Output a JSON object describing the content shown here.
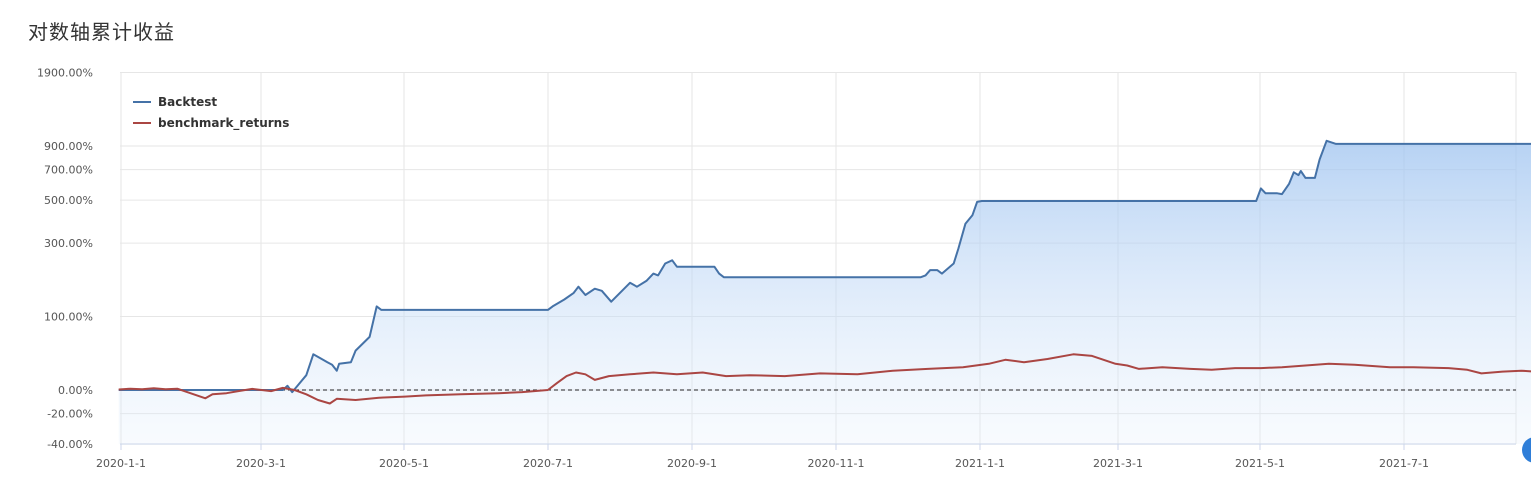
{
  "title": "对数轴累计收益",
  "chart_data": {
    "type": "area",
    "title": "对数轴累计收益",
    "y_scale": "log (1 + return)",
    "legend_position": "top-left",
    "grid": true,
    "x_tick_labels": [
      "2020-1-1",
      "2020-3-1",
      "2020-5-1",
      "2020-7-1",
      "2020-9-1",
      "2020-11-1",
      "2021-1-1",
      "2021-3-1",
      "2021-5-1",
      "2021-7-1"
    ],
    "y_tick_labels": [
      "1900.00%",
      "900.00%",
      "700.00%",
      "500.00%",
      "300.00%",
      "100.00%",
      "0.00%",
      "-20.00%",
      "-40.00%"
    ],
    "y_tick_values": [
      1900,
      900,
      700,
      500,
      300,
      100,
      0,
      -20,
      -40
    ],
    "ylim": [
      -40,
      1900
    ],
    "xlim": [
      "2019-12-31",
      "2021-08-26"
    ],
    "series": [
      {
        "name": "Backtest",
        "color": "#4572a7",
        "area": true,
        "points": [
          [
            "2019-12-31",
            0
          ],
          [
            "2020-03-10",
            0
          ],
          [
            "2020-03-12",
            4
          ],
          [
            "2020-03-14",
            -2
          ],
          [
            "2020-03-20",
            15
          ],
          [
            "2020-03-23",
            40
          ],
          [
            "2020-03-26",
            35
          ],
          [
            "2020-03-29",
            30
          ],
          [
            "2020-03-31",
            27
          ],
          [
            "2020-04-02",
            20
          ],
          [
            "2020-04-03",
            28
          ],
          [
            "2020-04-08",
            30
          ],
          [
            "2020-04-10",
            45
          ],
          [
            "2020-04-16",
            65
          ],
          [
            "2020-04-19",
            120
          ],
          [
            "2020-04-21",
            113
          ],
          [
            "2020-07-01",
            113
          ],
          [
            "2020-07-03",
            120
          ],
          [
            "2020-07-08",
            135
          ],
          [
            "2020-07-12",
            150
          ],
          [
            "2020-07-14",
            165
          ],
          [
            "2020-07-17",
            145
          ],
          [
            "2020-07-21",
            160
          ],
          [
            "2020-07-24",
            155
          ],
          [
            "2020-07-28",
            130
          ],
          [
            "2020-08-05",
            175
          ],
          [
            "2020-08-08",
            165
          ],
          [
            "2020-08-12",
            180
          ],
          [
            "2020-08-15",
            200
          ],
          [
            "2020-08-17",
            195
          ],
          [
            "2020-08-20",
            230
          ],
          [
            "2020-08-23",
            240
          ],
          [
            "2020-08-25",
            220
          ],
          [
            "2020-09-10",
            220
          ],
          [
            "2020-09-12",
            200
          ],
          [
            "2020-09-14",
            190
          ],
          [
            "2020-12-07",
            190
          ],
          [
            "2020-12-09",
            195
          ],
          [
            "2020-12-11",
            210
          ],
          [
            "2020-12-14",
            210
          ],
          [
            "2020-12-16",
            200
          ],
          [
            "2020-12-21",
            230
          ],
          [
            "2020-12-23",
            280
          ],
          [
            "2020-12-26",
            380
          ],
          [
            "2020-12-29",
            420
          ],
          [
            "2020-12-31",
            490
          ],
          [
            "2021-01-02",
            495
          ],
          [
            "2021-04-29",
            495
          ],
          [
            "2021-05-01",
            570
          ],
          [
            "2021-05-03",
            540
          ],
          [
            "2021-05-08",
            540
          ],
          [
            "2021-05-10",
            535
          ],
          [
            "2021-05-13",
            600
          ],
          [
            "2021-05-15",
            680
          ],
          [
            "2021-05-17",
            660
          ],
          [
            "2021-05-18",
            690
          ],
          [
            "2021-05-20",
            640
          ],
          [
            "2021-05-24",
            640
          ],
          [
            "2021-05-26",
            780
          ],
          [
            "2021-05-29",
            950
          ],
          [
            "2021-06-02",
            920
          ],
          [
            "2021-08-26",
            920
          ]
        ]
      },
      {
        "name": "benchmark_returns",
        "color": "#aa4643",
        "area": false,
        "points": [
          [
            "2019-12-31",
            0.5
          ],
          [
            "2020-01-05",
            1.2
          ],
          [
            "2020-01-10",
            0.8
          ],
          [
            "2020-01-15",
            1.6
          ],
          [
            "2020-01-20",
            0.7
          ],
          [
            "2020-01-25",
            1.2
          ],
          [
            "2020-02-01",
            -4
          ],
          [
            "2020-02-06",
            -7.5
          ],
          [
            "2020-02-09",
            -4
          ],
          [
            "2020-02-15",
            -3
          ],
          [
            "2020-02-20",
            -1
          ],
          [
            "2020-02-26",
            1.0
          ],
          [
            "2020-03-05",
            -1
          ],
          [
            "2020-03-10",
            2.0
          ],
          [
            "2020-03-15",
            0
          ],
          [
            "2020-03-20",
            -4
          ],
          [
            "2020-03-25",
            -9
          ],
          [
            "2020-03-30",
            -12
          ],
          [
            "2020-04-02",
            -8
          ],
          [
            "2020-04-10",
            -9
          ],
          [
            "2020-04-20",
            -7
          ],
          [
            "2020-05-01",
            -6
          ],
          [
            "2020-05-10",
            -5
          ],
          [
            "2020-05-25",
            -4
          ],
          [
            "2020-06-10",
            -3
          ],
          [
            "2020-06-20",
            -2
          ],
          [
            "2020-07-01",
            0
          ],
          [
            "2020-07-05",
            7
          ],
          [
            "2020-07-09",
            14
          ],
          [
            "2020-07-13",
            18
          ],
          [
            "2020-07-17",
            16
          ],
          [
            "2020-07-21",
            10
          ],
          [
            "2020-07-27",
            14
          ],
          [
            "2020-08-05",
            16
          ],
          [
            "2020-08-15",
            18
          ],
          [
            "2020-08-25",
            16
          ],
          [
            "2020-09-05",
            18
          ],
          [
            "2020-09-15",
            14
          ],
          [
            "2020-09-25",
            15
          ],
          [
            "2020-10-10",
            14
          ],
          [
            "2020-10-25",
            17
          ],
          [
            "2020-11-10",
            16
          ],
          [
            "2020-11-25",
            20
          ],
          [
            "2020-12-10",
            22
          ],
          [
            "2020-12-25",
            24
          ],
          [
            "2021-01-05",
            28
          ],
          [
            "2021-01-12",
            33
          ],
          [
            "2021-01-20",
            30
          ],
          [
            "2021-01-30",
            34
          ],
          [
            "2021-02-10",
            40
          ],
          [
            "2021-02-18",
            38
          ],
          [
            "2021-02-28",
            28
          ],
          [
            "2021-03-05",
            26
          ],
          [
            "2021-03-10",
            22
          ],
          [
            "2021-03-20",
            24
          ],
          [
            "2021-04-01",
            22
          ],
          [
            "2021-04-10",
            21
          ],
          [
            "2021-04-20",
            23
          ],
          [
            "2021-05-01",
            23
          ],
          [
            "2021-05-10",
            24
          ],
          [
            "2021-05-20",
            26
          ],
          [
            "2021-05-30",
            28
          ],
          [
            "2021-06-10",
            27
          ],
          [
            "2021-06-25",
            24
          ],
          [
            "2021-07-05",
            24
          ],
          [
            "2021-07-20",
            23
          ],
          [
            "2021-07-28",
            21
          ],
          [
            "2021-08-03",
            17
          ],
          [
            "2021-08-12",
            19
          ],
          [
            "2021-08-20",
            20
          ],
          [
            "2021-08-26",
            19
          ]
        ]
      }
    ],
    "zero_line": true
  }
}
